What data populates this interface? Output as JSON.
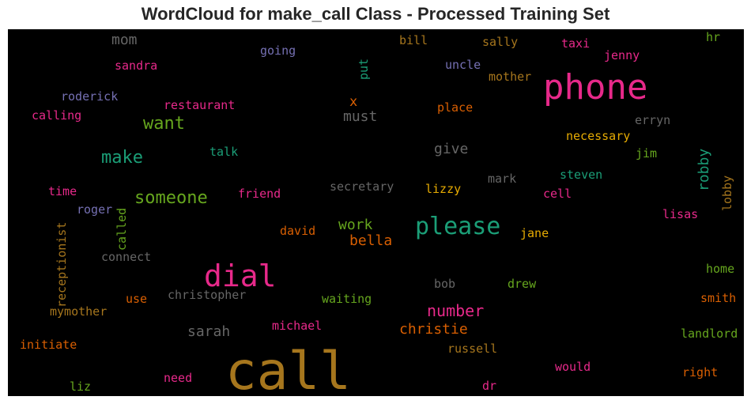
{
  "chart_data": {
    "type": "wordcloud",
    "title": "WordCloud for make_call Class - Processed Training Set",
    "background": "#000000",
    "words": [
      {
        "text": "call",
        "color": "#a6761d"
      },
      {
        "text": "phone",
        "color": "#e7298a"
      },
      {
        "text": "dial",
        "color": "#e7298a"
      },
      {
        "text": "please",
        "color": "#1b9e77"
      },
      {
        "text": "someone",
        "color": "#66a61e"
      },
      {
        "text": "want",
        "color": "#66a61e"
      },
      {
        "text": "make",
        "color": "#1b9e77"
      },
      {
        "text": "number",
        "color": "#e7298a"
      },
      {
        "text": "christie",
        "color": "#d95f02"
      },
      {
        "text": "sarah",
        "color": "#666666"
      },
      {
        "text": "work",
        "color": "#66a61e"
      },
      {
        "text": "bella",
        "color": "#d95f02"
      },
      {
        "text": "give",
        "color": "#666666"
      },
      {
        "text": "must",
        "color": "#666666"
      },
      {
        "text": "mom",
        "color": "#666666"
      },
      {
        "text": "robby",
        "color": "#1b9e77"
      },
      {
        "text": "x",
        "color": "#d95f02"
      },
      {
        "text": "going",
        "color": "#7570b3"
      },
      {
        "text": "sandra",
        "color": "#e7298a"
      },
      {
        "text": "bill",
        "color": "#a6761d"
      },
      {
        "text": "sally",
        "color": "#a6761d"
      },
      {
        "text": "taxi",
        "color": "#e7298a"
      },
      {
        "text": "hr",
        "color": "#66a61e"
      },
      {
        "text": "jenny",
        "color": "#e7298a"
      },
      {
        "text": "uncle",
        "color": "#7570b3"
      },
      {
        "text": "mother",
        "color": "#a6761d"
      },
      {
        "text": "put",
        "color": "#1b9e77"
      },
      {
        "text": "roderick",
        "color": "#7570b3"
      },
      {
        "text": "restaurant",
        "color": "#e7298a"
      },
      {
        "text": "calling",
        "color": "#e7298a"
      },
      {
        "text": "place",
        "color": "#d95f02"
      },
      {
        "text": "erryn",
        "color": "#666666"
      },
      {
        "text": "necessary",
        "color": "#e6ab02"
      },
      {
        "text": "talk",
        "color": "#1b9e77"
      },
      {
        "text": "jim",
        "color": "#66a61e"
      },
      {
        "text": "steven",
        "color": "#1b9e77"
      },
      {
        "text": "mark",
        "color": "#666666"
      },
      {
        "text": "secretary",
        "color": "#666666"
      },
      {
        "text": "lizzy",
        "color": "#e6ab02"
      },
      {
        "text": "time",
        "color": "#e7298a"
      },
      {
        "text": "friend",
        "color": "#e7298a"
      },
      {
        "text": "cell",
        "color": "#e7298a"
      },
      {
        "text": "lobby",
        "color": "#a6761d"
      },
      {
        "text": "roger",
        "color": "#7570b3"
      },
      {
        "text": "called",
        "color": "#66a61e"
      },
      {
        "text": "receptionist",
        "color": "#a6761d"
      },
      {
        "text": "lisas",
        "color": "#e7298a"
      },
      {
        "text": "david",
        "color": "#d95f02"
      },
      {
        "text": "jane",
        "color": "#e6ab02"
      },
      {
        "text": "connect",
        "color": "#666666"
      },
      {
        "text": "home",
        "color": "#66a61e"
      },
      {
        "text": "bob",
        "color": "#666666"
      },
      {
        "text": "drew",
        "color": "#66a61e"
      },
      {
        "text": "use",
        "color": "#d95f02"
      },
      {
        "text": "christopher",
        "color": "#666666"
      },
      {
        "text": "waiting",
        "color": "#66a61e"
      },
      {
        "text": "smith",
        "color": "#d95f02"
      },
      {
        "text": "mymother",
        "color": "#a6761d"
      },
      {
        "text": "michael",
        "color": "#e7298a"
      },
      {
        "text": "landlord",
        "color": "#66a61e"
      },
      {
        "text": "initiate",
        "color": "#d95f02"
      },
      {
        "text": "russell",
        "color": "#a6761d"
      },
      {
        "text": "would",
        "color": "#e7298a"
      },
      {
        "text": "right",
        "color": "#d95f02"
      },
      {
        "text": "need",
        "color": "#e7298a"
      },
      {
        "text": "liz",
        "color": "#66a61e"
      },
      {
        "text": "dr",
        "color": "#e7298a"
      }
    ]
  }
}
